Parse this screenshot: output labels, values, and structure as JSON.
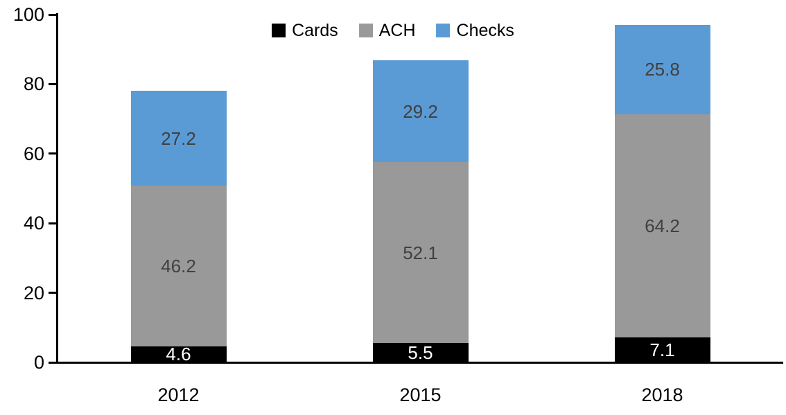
{
  "chart_data": {
    "type": "bar",
    "subtype": "stacked",
    "title": "",
    "xlabel": "",
    "ylabel": "",
    "categories": [
      "2012",
      "2015",
      "2018"
    ],
    "series": [
      {
        "name": "Cards",
        "color": "#000000",
        "label_color": "#ffffff",
        "values": [
          4.6,
          5.5,
          7.1
        ]
      },
      {
        "name": "ACH",
        "color": "#999999",
        "label_color": "#404040",
        "values": [
          46.2,
          52.1,
          64.2
        ]
      },
      {
        "name": "Checks",
        "color": "#5b9bd5",
        "label_color": "#404040",
        "values": [
          27.2,
          29.2,
          25.8
        ]
      }
    ],
    "totals": [
      78.0,
      86.8,
      97.1
    ],
    "ylim": [
      0,
      100
    ],
    "yticks": [
      0,
      20,
      40,
      60,
      80,
      100
    ],
    "grid": false,
    "axis_color": "#000000",
    "legend": {
      "position": "top-center",
      "entries": [
        "Cards",
        "ACH",
        "Checks"
      ]
    }
  }
}
